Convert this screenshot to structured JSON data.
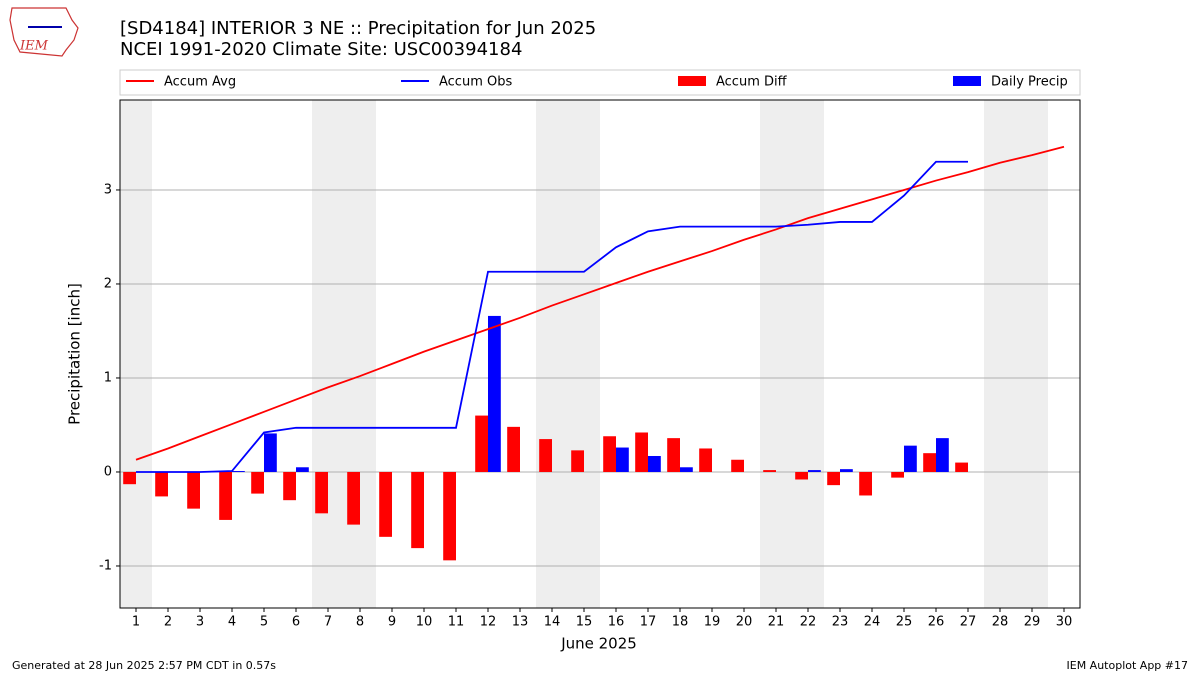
{
  "logo_text": "IEM",
  "chart_data": {
    "type": "bar-line",
    "title": "[SD4184] INTERIOR 3 NE :: Precipitation for Jun 2025",
    "subtitle": "NCEI 1991-2020 Climate Site: USC00394184",
    "xlabel": "June 2025",
    "ylabel": "Precipitation [inch]",
    "x": [
      1,
      2,
      3,
      4,
      5,
      6,
      7,
      8,
      9,
      10,
      11,
      12,
      13,
      14,
      15,
      16,
      17,
      18,
      19,
      20,
      21,
      22,
      23,
      24,
      25,
      26,
      27,
      28,
      29,
      30
    ],
    "xlim": [
      0.5,
      30.5
    ],
    "xticks": [
      1,
      2,
      3,
      4,
      5,
      6,
      7,
      8,
      9,
      10,
      11,
      12,
      13,
      14,
      15,
      16,
      17,
      18,
      19,
      20,
      21,
      22,
      23,
      24,
      25,
      26,
      27,
      28,
      29,
      30
    ],
    "ylim": [
      -1.447,
      3.957
    ],
    "yticks": [
      -1,
      0,
      1,
      2,
      3
    ],
    "grid": true,
    "shaded_days": [
      1,
      7,
      8,
      14,
      15,
      21,
      22,
      28,
      29
    ],
    "shade_color": "#eeeeee",
    "series": [
      {
        "name": "Accum Avg",
        "type": "line",
        "color": "#ff0000",
        "values": [
          0.13,
          0.25,
          0.38,
          0.51,
          0.64,
          0.77,
          0.9,
          1.02,
          1.15,
          1.28,
          1.4,
          1.52,
          1.64,
          1.77,
          1.89,
          2.01,
          2.13,
          2.24,
          2.35,
          2.47,
          2.58,
          2.7,
          2.8,
          2.9,
          3.0,
          3.1,
          3.19,
          3.29,
          3.37,
          3.46
        ]
      },
      {
        "name": "Accum Obs",
        "type": "line",
        "color": "#0000ff",
        "values": [
          0,
          0,
          0,
          0.01,
          0.42,
          0.47,
          0.47,
          0.47,
          0.47,
          0.47,
          0.47,
          2.13,
          2.13,
          2.13,
          2.13,
          2.39,
          2.56,
          2.61,
          2.61,
          2.61,
          2.61,
          2.63,
          2.66,
          2.66,
          2.94,
          3.3,
          3.3,
          null,
          null,
          null
        ]
      },
      {
        "name": "Accum Diff",
        "type": "bar",
        "color": "#ff0000",
        "values": [
          -0.13,
          -0.26,
          -0.39,
          -0.51,
          -0.23,
          -0.3,
          -0.44,
          -0.56,
          -0.69,
          -0.81,
          -0.94,
          0.6,
          0.48,
          0.35,
          0.23,
          0.38,
          0.42,
          0.36,
          0.25,
          0.13,
          0.02,
          -0.08,
          -0.14,
          -0.25,
          -0.06,
          0.2,
          0.1,
          null,
          null,
          null
        ]
      },
      {
        "name": "Daily Precip",
        "type": "bar",
        "color": "#0000ff",
        "values": [
          0,
          0,
          0,
          0.01,
          0.41,
          0.05,
          0,
          0,
          0,
          0,
          0,
          1.66,
          0,
          0,
          0,
          0.26,
          0.17,
          0.05,
          0,
          0,
          0,
          0.02,
          0.03,
          0,
          0.28,
          0.36,
          0,
          null,
          null,
          null
        ]
      }
    ],
    "footer_left": "Generated at 28 Jun 2025 2:57 PM CDT in 0.57s",
    "footer_right": "IEM Autoplot App #17"
  }
}
